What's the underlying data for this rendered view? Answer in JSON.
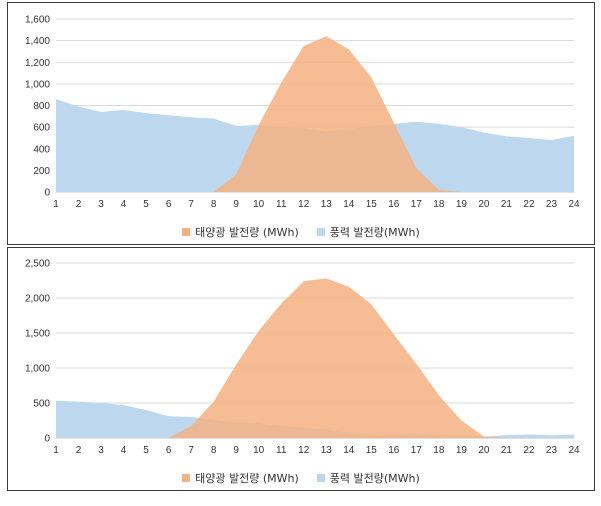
{
  "chart_data": [
    {
      "type": "area",
      "x": [
        1,
        2,
        3,
        4,
        5,
        6,
        7,
        8,
        9,
        10,
        11,
        12,
        13,
        14,
        15,
        16,
        17,
        18,
        19,
        20,
        21,
        22,
        23,
        24
      ],
      "ylim": [
        0,
        1600
      ],
      "yticks": [
        0,
        200,
        400,
        600,
        800,
        1000,
        1200,
        1400,
        1600
      ],
      "ytick_labels": [
        "0",
        "200",
        "400",
        "600",
        "800",
        "1,000",
        "1,200",
        "1,400",
        "1,600"
      ],
      "xtick_labels": [
        "1",
        "2",
        "3",
        "4",
        "5",
        "6",
        "7",
        "8",
        "9",
        "10",
        "11",
        "12",
        "13",
        "14",
        "15",
        "16",
        "17",
        "18",
        "19",
        "20",
        "21",
        "22",
        "23",
        "24"
      ],
      "grid": true,
      "legend_position": "bottom",
      "series": [
        {
          "name": "풍력 발전량(MWh)",
          "color": "#BDD7EE",
          "values": [
            860,
            790,
            740,
            760,
            730,
            710,
            690,
            680,
            610,
            620,
            600,
            590,
            560,
            580,
            610,
            630,
            650,
            630,
            600,
            550,
            515,
            500,
            480,
            520
          ]
        },
        {
          "name": "태양광 발전량 (MWh)",
          "color": "#F4B183",
          "values": [
            0,
            0,
            0,
            0,
            0,
            0,
            0,
            0,
            160,
            620,
            1010,
            1350,
            1440,
            1320,
            1060,
            640,
            220,
            20,
            0,
            0,
            0,
            0,
            0,
            0
          ]
        }
      ],
      "legend": [
        {
          "label": "태양광 발전량 (MWh)",
          "color": "#F4B183"
        },
        {
          "label": "풍력 발전량(MWh)",
          "color": "#BDD7EE"
        }
      ]
    },
    {
      "type": "area",
      "x": [
        1,
        2,
        3,
        4,
        5,
        6,
        7,
        8,
        9,
        10,
        11,
        12,
        13,
        14,
        15,
        16,
        17,
        18,
        19,
        20,
        21,
        22,
        23,
        24
      ],
      "ylim": [
        0,
        2500
      ],
      "yticks": [
        0,
        500,
        1000,
        1500,
        2000,
        2500
      ],
      "ytick_labels": [
        "0",
        "500",
        "1,000",
        "1,500",
        "2,000",
        "2,500"
      ],
      "xtick_labels": [
        "1",
        "2",
        "3",
        "4",
        "5",
        "6",
        "7",
        "8",
        "9",
        "10",
        "11",
        "12",
        "13",
        "14",
        "15",
        "16",
        "17",
        "18",
        "19",
        "20",
        "21",
        "22",
        "23",
        "24"
      ],
      "grid": true,
      "legend_position": "bottom",
      "series": [
        {
          "name": "풍력 발전량(MWh)",
          "color": "#BDD7EE",
          "values": [
            530,
            520,
            500,
            470,
            400,
            310,
            300,
            260,
            220,
            210,
            170,
            150,
            120,
            70,
            40,
            45,
            50,
            40,
            35,
            20,
            40,
            50,
            40,
            50
          ]
        },
        {
          "name": "태양광 발전량 (MWh)",
          "color": "#F4B183",
          "values": [
            0,
            0,
            0,
            0,
            0,
            0,
            170,
            520,
            1050,
            1530,
            1920,
            2240,
            2280,
            2160,
            1910,
            1480,
            1060,
            610,
            250,
            20,
            0,
            0,
            0,
            0
          ]
        }
      ],
      "legend": [
        {
          "label": "태양광 발전량 (MWh)",
          "color": "#F4B183"
        },
        {
          "label": "풍력 발전량(MWh)",
          "color": "#BDD7EE"
        }
      ]
    }
  ]
}
